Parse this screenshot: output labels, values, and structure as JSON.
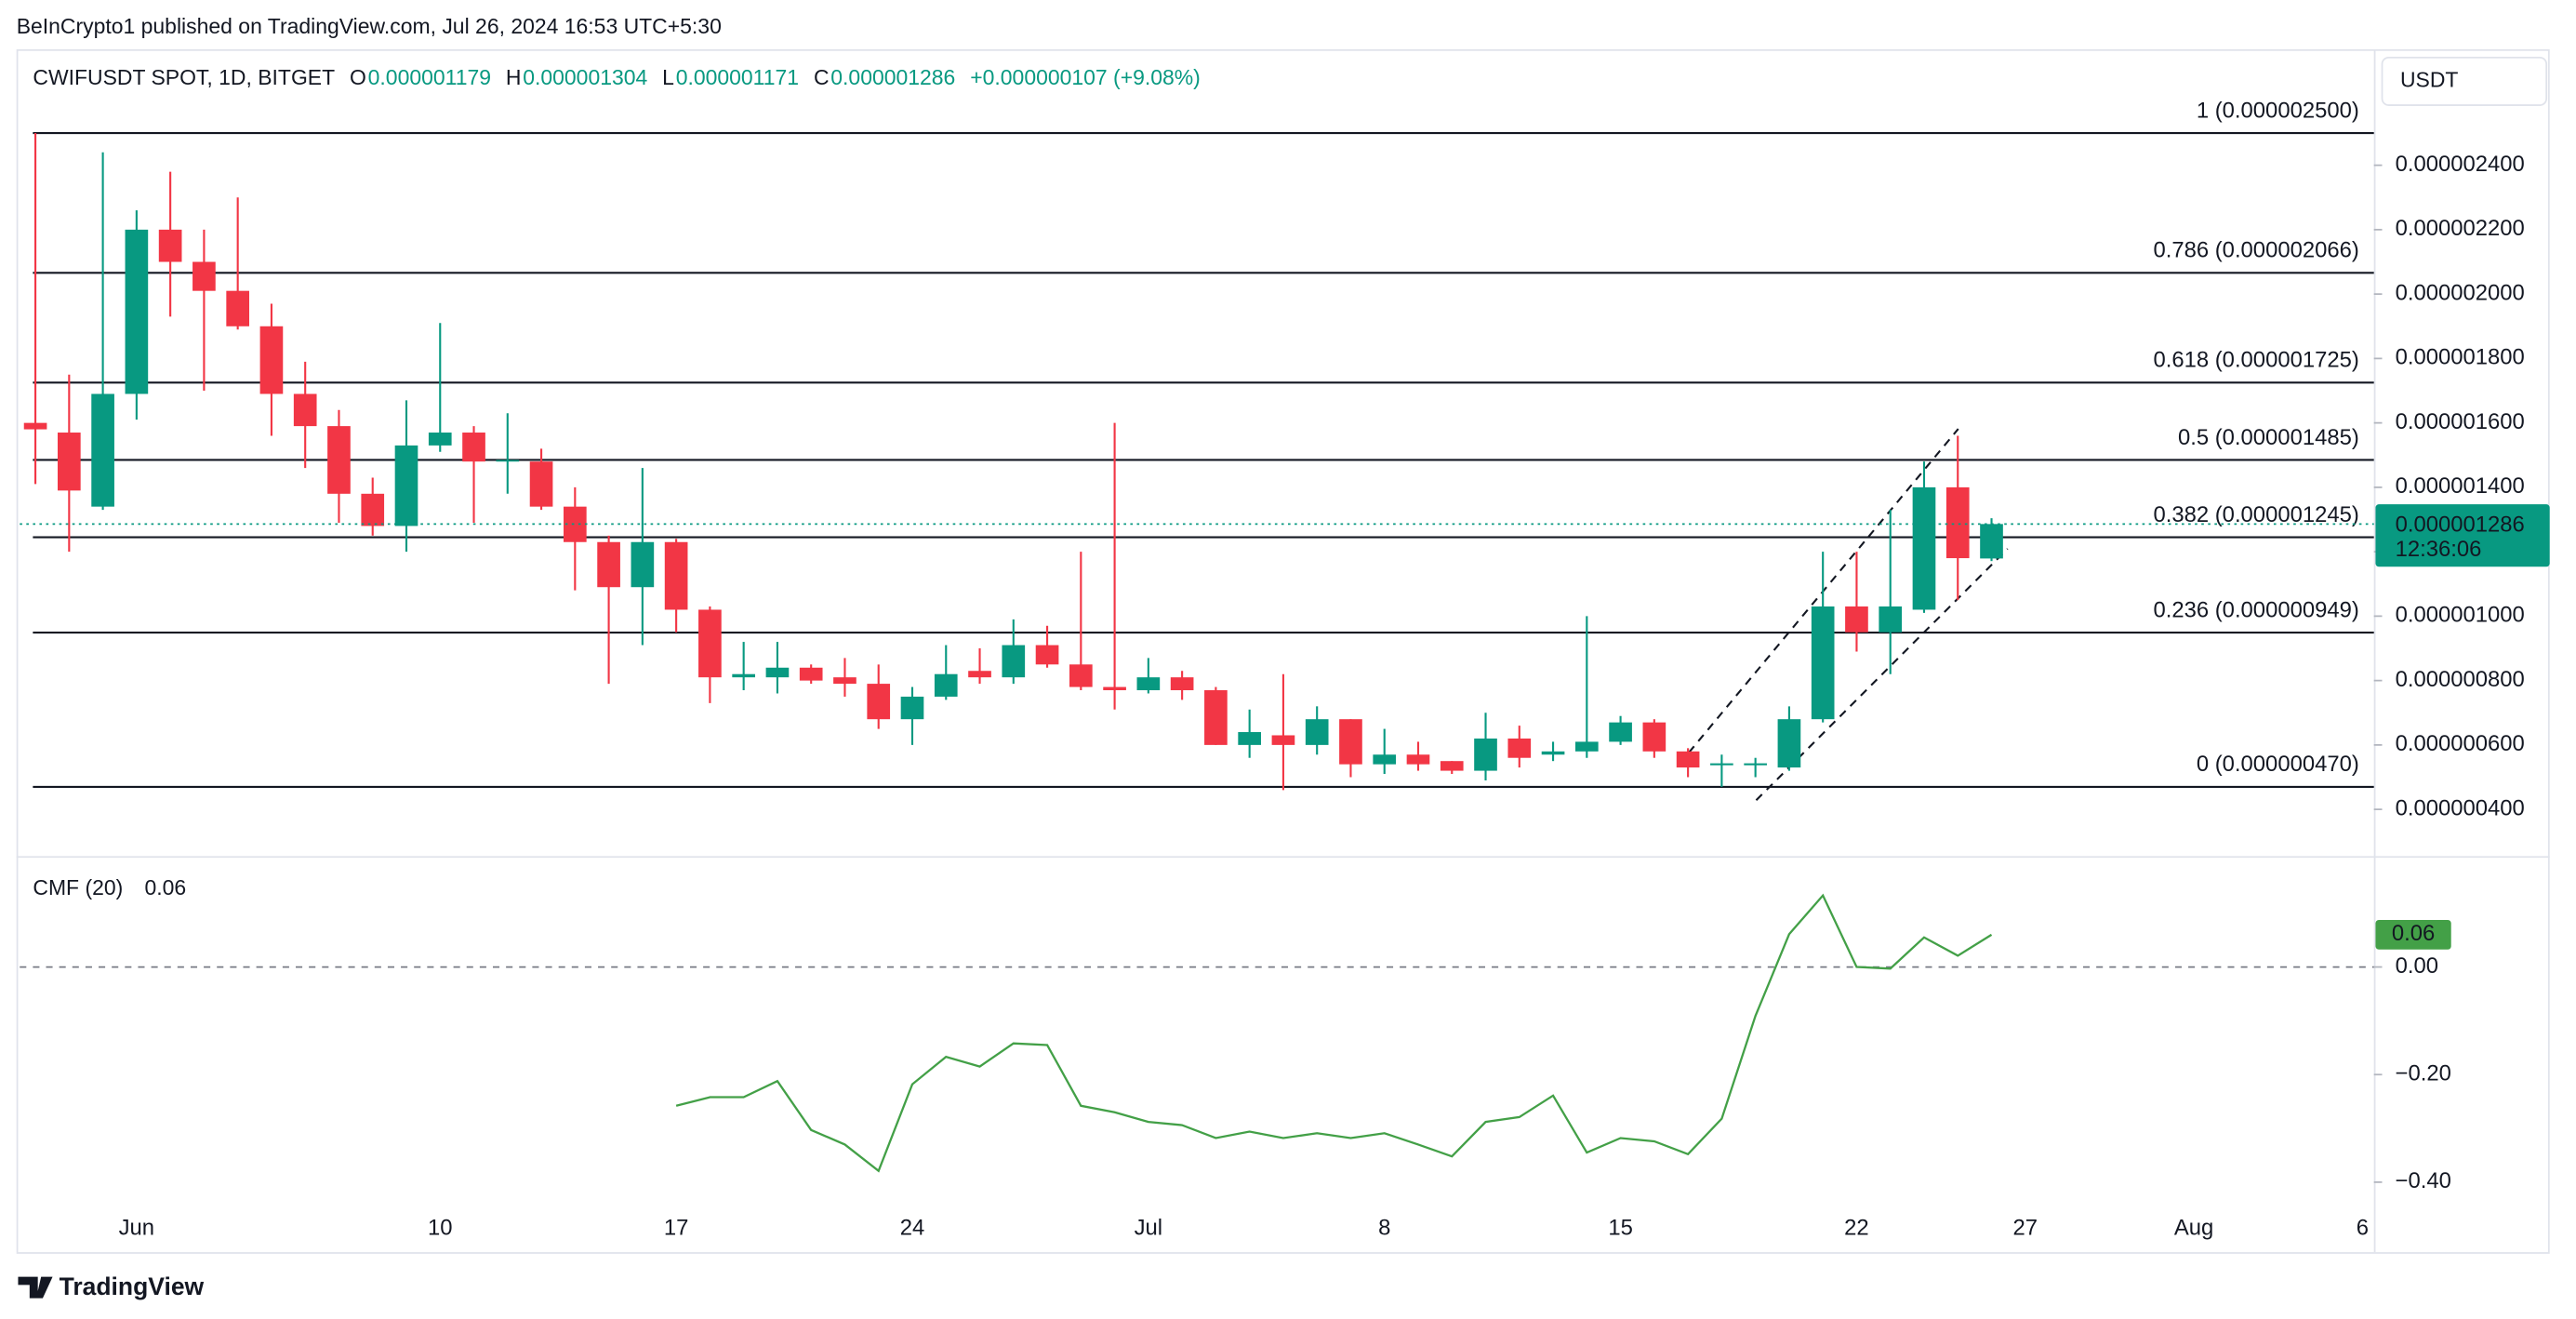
{
  "header": {
    "attribution": "BeInCrypto1 published on TradingView.com, Jul 26, 2024 16:53 UTC+5:30",
    "brand": "TradingView"
  },
  "chart_data": [
    {
      "type": "candlestick",
      "title": "CWIFUSDT SPOT, 1D, BITGET",
      "legend": [
        {
          "key": "O",
          "value": "0.000001179"
        },
        {
          "key": "H",
          "value": "0.000001304"
        },
        {
          "key": "L",
          "value": "0.000001171"
        },
        {
          "key": "C",
          "value": "0.000001286"
        }
      ],
      "change": "+0.000000107 (+9.08%)",
      "currency": "USDT",
      "last_price_label": "0.000001286",
      "countdown": "12:36:06",
      "up_color": "#089981",
      "down_color": "#f23645",
      "x": [
        "2024-05-29",
        "2024-05-30",
        "2024-05-31",
        "2024-06-01",
        "2024-06-02",
        "2024-06-03",
        "2024-06-04",
        "2024-06-05",
        "2024-06-06",
        "2024-06-07",
        "2024-06-08",
        "2024-06-09",
        "2024-06-10",
        "2024-06-11",
        "2024-06-12",
        "2024-06-13",
        "2024-06-14",
        "2024-06-15",
        "2024-06-16",
        "2024-06-17",
        "2024-06-18",
        "2024-06-19",
        "2024-06-20",
        "2024-06-21",
        "2024-06-22",
        "2024-06-23",
        "2024-06-24",
        "2024-06-25",
        "2024-06-26",
        "2024-06-27",
        "2024-06-28",
        "2024-06-29",
        "2024-06-30",
        "2024-07-01",
        "2024-07-02",
        "2024-07-03",
        "2024-07-04",
        "2024-07-05",
        "2024-07-06",
        "2024-07-07",
        "2024-07-08",
        "2024-07-09",
        "2024-07-10",
        "2024-07-11",
        "2024-07-12",
        "2024-07-13",
        "2024-07-14",
        "2024-07-15",
        "2024-07-16",
        "2024-07-17",
        "2024-07-18",
        "2024-07-19",
        "2024-07-20",
        "2024-07-21",
        "2024-07-22",
        "2024-07-23",
        "2024-07-24",
        "2024-07-25",
        "2024-07-26"
      ],
      "open": [
        1.6e-06,
        1.57e-06,
        1.34e-06,
        1.69e-06,
        2.2e-06,
        2.1e-06,
        2.01e-06,
        1.9e-06,
        1.69e-06,
        1.59e-06,
        1.38e-06,
        1.28e-06,
        1.53e-06,
        1.57e-06,
        1.48e-06,
        1.48e-06,
        1.34e-06,
        1.23e-06,
        1.09e-06,
        1.23e-06,
        1.02e-06,
        8.1e-07,
        8.1e-07,
        8.4e-07,
        8.1e-07,
        7.9e-07,
        6.8e-07,
        7.5e-07,
        8.3e-07,
        8.1e-07,
        9.1e-07,
        8.5e-07,
        7.8e-07,
        7.7e-07,
        8.1e-07,
        7.7e-07,
        6e-07,
        6.3e-07,
        6e-07,
        6.8e-07,
        5.4e-07,
        5.7e-07,
        5.5e-07,
        5.2e-07,
        6.2e-07,
        5.7e-07,
        5.8e-07,
        6.1e-07,
        6.7e-07,
        5.8e-07,
        5.37e-07,
        5.37e-07,
        5.3e-07,
        6.8e-07,
        1.03e-06,
        9.5e-07,
        1.02e-06,
        1.4e-06,
        1.179e-06
      ],
      "high": [
        2.5e-06,
        1.75e-06,
        2.44e-06,
        2.26e-06,
        2.38e-06,
        2.2e-06,
        2.3e-06,
        1.97e-06,
        1.79e-06,
        1.64e-06,
        1.43e-06,
        1.67e-06,
        1.91e-06,
        1.59e-06,
        1.63e-06,
        1.52e-06,
        1.4e-06,
        1.25e-06,
        1.46e-06,
        1.24e-06,
        1.03e-06,
        9.2e-07,
        9.2e-07,
        8.5e-07,
        8.7e-07,
        8.5e-07,
        7.8e-07,
        9.1e-07,
        9e-07,
        9.9e-07,
        9.7e-07,
        1.2e-06,
        1.6e-06,
        8.7e-07,
        8.3e-07,
        7.8e-07,
        7.1e-07,
        8.2e-07,
        7.2e-07,
        6.8e-07,
        6.5e-07,
        6.1e-07,
        5.5e-07,
        7e-07,
        6.6e-07,
        6.1e-07,
        1e-06,
        6.9e-07,
        6.8e-07,
        5.9e-07,
        5.7e-07,
        5.6e-07,
        7.2e-07,
        1.2e-06,
        1.2e-06,
        1.33e-06,
        1.48e-06,
        1.56e-06,
        1.304e-06
      ],
      "low": [
        1.41e-06,
        1.2e-06,
        1.33e-06,
        1.61e-06,
        1.93e-06,
        1.7e-06,
        1.89e-06,
        1.56e-06,
        1.46e-06,
        1.29e-06,
        1.25e-06,
        1.2e-06,
        1.51e-06,
        1.29e-06,
        1.38e-06,
        1.33e-06,
        1.08e-06,
        7.9e-07,
        9.1e-07,
        9.5e-07,
        7.3e-07,
        7.7e-07,
        7.6e-07,
        7.9e-07,
        7.5e-07,
        6.5e-07,
        6e-07,
        7.4e-07,
        7.9e-07,
        7.9e-07,
        8.4e-07,
        7.7e-07,
        7.1e-07,
        7.6e-07,
        7.4e-07,
        6e-07,
        5.6e-07,
        4.6e-07,
        5.7e-07,
        5e-07,
        5.1e-07,
        5.2e-07,
        5.1e-07,
        4.9e-07,
        5.3e-07,
        5.5e-07,
        5.6e-07,
        6e-07,
        5.6e-07,
        5e-07,
        4.7e-07,
        5e-07,
        5.2e-07,
        6.7e-07,
        8.9e-07,
        8.2e-07,
        1.01e-06,
        1.05e-06,
        1.171e-06
      ],
      "close": [
        1.58e-06,
        1.39e-06,
        1.69e-06,
        2.2e-06,
        2.1e-06,
        2.01e-06,
        1.9e-06,
        1.69e-06,
        1.59e-06,
        1.38e-06,
        1.28e-06,
        1.53e-06,
        1.57e-06,
        1.48e-06,
        1.485e-06,
        1.34e-06,
        1.23e-06,
        1.09e-06,
        1.23e-06,
        1.02e-06,
        8.1e-07,
        8.2e-07,
        8.4e-07,
        8e-07,
        7.9e-07,
        6.8e-07,
        7.5e-07,
        8.2e-07,
        8.1e-07,
        9.1e-07,
        8.5e-07,
        7.8e-07,
        7.7e-07,
        8.1e-07,
        7.7e-07,
        6e-07,
        6.4e-07,
        6e-07,
        6.8e-07,
        5.4e-07,
        5.7e-07,
        5.4e-07,
        5.2e-07,
        6.2e-07,
        5.6e-07,
        5.8e-07,
        6.1e-07,
        6.7e-07,
        5.8e-07,
        5.3e-07,
        5.43e-07,
        5.43e-07,
        6.8e-07,
        1.03e-06,
        9.5e-07,
        1.03e-06,
        1.4e-06,
        1.18e-06,
        1.286e-06
      ],
      "levels": [
        {
          "value": 2.5e-06,
          "label": "1 (0.000002500)"
        },
        {
          "value": 2.066e-06,
          "label": "0.786 (0.000002066)"
        },
        {
          "value": 1.725e-06,
          "label": "0.618 (0.000001725)"
        },
        {
          "value": 1.485e-06,
          "label": "0.5 (0.000001485)"
        },
        {
          "value": 1.245e-06,
          "label": "0.382 (0.000001245)"
        },
        {
          "value": 9.49e-07,
          "label": "0.236 (0.000000949)"
        },
        {
          "value": 4.7e-07,
          "label": "0 (0.000000470)"
        }
      ],
      "xlim": [
        "2024-05-28",
        "2024-08-07"
      ],
      "xticks": [
        {
          "value": "2024-06-01",
          "label": "Jun"
        },
        {
          "value": "2024-06-10",
          "label": "10"
        },
        {
          "value": "2024-06-17",
          "label": "17"
        },
        {
          "value": "2024-06-24",
          "label": "24"
        },
        {
          "value": "2024-07-01",
          "label": "Jul"
        },
        {
          "value": "2024-07-08",
          "label": "8"
        },
        {
          "value": "2024-07-15",
          "label": "15"
        },
        {
          "value": "2024-07-22",
          "label": "22"
        },
        {
          "value": "2024-07-27",
          "label": "27"
        },
        {
          "value": "2024-08-01",
          "label": "Aug"
        },
        {
          "value": "2024-08-06",
          "label": "6"
        }
      ],
      "ylim": [
        2.6e-07,
        2.76e-06
      ],
      "yticks": [
        {
          "value": 4e-07,
          "label": "0.000000400"
        },
        {
          "value": 6e-07,
          "label": "0.000000600"
        },
        {
          "value": 8e-07,
          "label": "0.000000800"
        },
        {
          "value": 1e-06,
          "label": "0.000001000"
        },
        {
          "value": 1.2e-06,
          "label": "0.000001200"
        },
        {
          "value": 1.4e-06,
          "label": "0.000001400"
        },
        {
          "value": 1.6e-06,
          "label": "0.000001600"
        },
        {
          "value": 1.8e-06,
          "label": "0.000001800"
        },
        {
          "value": 2e-06,
          "label": "0.000002000"
        },
        {
          "value": 2.2e-06,
          "label": "0.000002200"
        },
        {
          "value": 2.4e-06,
          "label": "0.000002400"
        }
      ],
      "grid": false
    },
    {
      "type": "line",
      "title": "CMF (20)",
      "value_label": "0.06",
      "color": "#43a047",
      "values": [
        null,
        null,
        null,
        null,
        null,
        null,
        null,
        null,
        null,
        null,
        null,
        null,
        null,
        null,
        null,
        null,
        null,
        null,
        null,
        -0.258,
        -0.242,
        -0.242,
        -0.212,
        -0.303,
        -0.33,
        -0.379,
        -0.218,
        -0.167,
        -0.185,
        -0.142,
        -0.145,
        -0.258,
        -0.27,
        -0.288,
        -0.294,
        -0.318,
        -0.306,
        -0.318,
        -0.309,
        -0.318,
        -0.309,
        -0.33,
        -0.352,
        -0.288,
        -0.279,
        -0.239,
        -0.345,
        -0.318,
        -0.324,
        -0.348,
        -0.282,
        -0.091,
        0.061,
        0.133,
        0.0,
        -0.003,
        0.055,
        0.021,
        0.06
      ],
      "ylim": [
        -0.53,
        0.2
      ],
      "yticks": [
        {
          "value": 0,
          "label": "0.00"
        },
        {
          "value": -0.2,
          "label": "−0.20"
        },
        {
          "value": -0.4,
          "label": "−0.40"
        }
      ]
    }
  ]
}
